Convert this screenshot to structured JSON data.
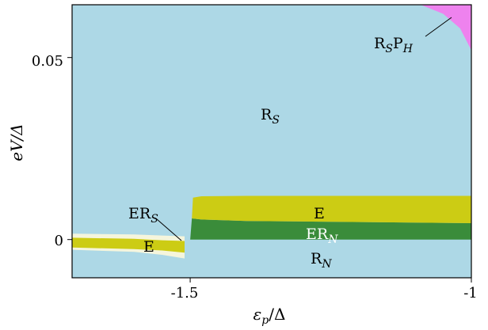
{
  "chart_data": {
    "type": "area",
    "xlabel": "εp/Δ",
    "ylabel": "eV/Δ",
    "xlim": [
      -1.71,
      -1.0
    ],
    "ylim": [
      -0.0105,
      0.0645
    ],
    "xticks": [
      {
        "value": -1.5,
        "label": "-1.5"
      },
      {
        "value": -1.0,
        "label": "-1"
      }
    ],
    "yticks": [
      {
        "value": 0,
        "label": "0"
      },
      {
        "value": 0.05,
        "label": "0.05"
      }
    ],
    "regions": [
      {
        "key": "RS",
        "text": "R",
        "sub": "S",
        "color": "#add8e6"
      },
      {
        "key": "RN",
        "text": "R",
        "sub": "N",
        "color": "#add8e6"
      },
      {
        "key": "E_right",
        "text": "E",
        "sub": "",
        "color": "#cccc14"
      },
      {
        "key": "E_left",
        "text": "E",
        "sub": "",
        "color": "#cccc14"
      },
      {
        "key": "ERN",
        "text": "ER",
        "sub": "N",
        "color": "#3a8c3a"
      },
      {
        "key": "ERS",
        "text": "ER",
        "sub": "S",
        "color": "#f5f5dc"
      },
      {
        "key": "RSPH",
        "text": "RSPH",
        "color": "#ee82ee"
      }
    ],
    "boundaries": {
      "E_right_top": [
        [
          -1.495,
          0.0115
        ],
        [
          -1.48,
          0.0119
        ],
        [
          -1.4,
          0.012
        ],
        [
          -1.0,
          0.012
        ]
      ],
      "E_right_bottom": [
        [
          -1.497,
          0.0058
        ],
        [
          -1.48,
          0.0055
        ],
        [
          -1.4,
          0.0051
        ],
        [
          -1.0,
          0.0045
        ]
      ],
      "ERN_bottom": [
        [
          -1.5,
          0.0
        ],
        [
          -1.0,
          0.0
        ]
      ],
      "E_left_top": [
        [
          -1.71,
          0.0005
        ],
        [
          -1.6,
          0.0002
        ],
        [
          -1.55,
          -0.0002
        ],
        [
          -1.51,
          -0.0004
        ]
      ],
      "E_left_bottom": [
        [
          -1.71,
          -0.0022
        ],
        [
          -1.6,
          -0.0026
        ],
        [
          -1.55,
          -0.003
        ],
        [
          -1.51,
          -0.0036
        ]
      ],
      "ERS_top": [
        [
          -1.71,
          0.0016
        ],
        [
          -1.6,
          0.0014
        ],
        [
          -1.55,
          0.0011
        ],
        [
          -1.51,
          0.0009
        ]
      ],
      "ERS_bottom": [
        [
          -1.71,
          -0.0028
        ],
        [
          -1.6,
          -0.0034
        ],
        [
          -1.55,
          -0.0042
        ],
        [
          -1.51,
          -0.0052
        ]
      ],
      "RSPH_edge": [
        [
          -1.09,
          0.0645
        ],
        [
          -1.05,
          0.062
        ],
        [
          -1.02,
          0.058
        ],
        [
          -1.0,
          0.052
        ]
      ]
    }
  },
  "labels": {
    "RS": {
      "main": "R",
      "sub": "S"
    },
    "RN": {
      "main": "R",
      "sub": "N"
    },
    "E_right": "E",
    "E_left": "E",
    "ERN": {
      "main": "ER",
      "sub": "N"
    },
    "ERS": {
      "main": "ER",
      "sub": "S"
    },
    "RSPH": {
      "m1": "R",
      "s1": "S",
      "m2": "P",
      "s2": "H"
    }
  },
  "axes": {
    "xlabel_main": "ε",
    "xlabel_sub": "p",
    "xlabel_rest": "/Δ",
    "ylabel": "eV/Δ"
  }
}
